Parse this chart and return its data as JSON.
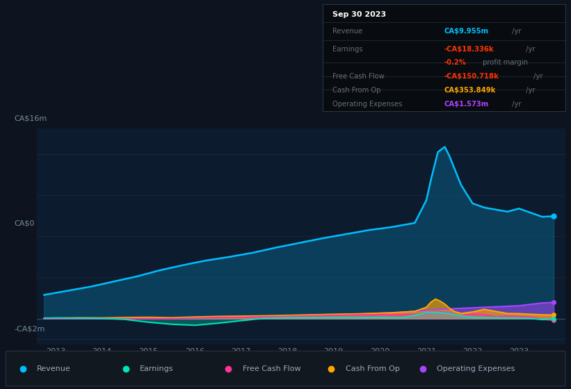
{
  "bg_color": "#0d1420",
  "chart_bg": "#0d1b2e",
  "grid_color": "#1a2a3a",
  "ylim": [
    -2500000,
    18500000
  ],
  "y_zero": 0,
  "y_top": 16000000,
  "y_bot": -2000000,
  "xlim": [
    2012.6,
    2024.0
  ],
  "xticks": [
    2013,
    2014,
    2015,
    2016,
    2017,
    2018,
    2019,
    2020,
    2021,
    2022,
    2023
  ],
  "revenue_color": "#00bfff",
  "earnings_color": "#00e5bb",
  "fcf_color": "#ff3399",
  "cashop_color": "#ffa500",
  "opex_color": "#aa44ff",
  "revenue_x": [
    2012.75,
    2013.0,
    2013.25,
    2013.75,
    2014.25,
    2014.75,
    2015.25,
    2015.75,
    2016.25,
    2016.75,
    2017.25,
    2017.75,
    2018.25,
    2018.75,
    2019.25,
    2019.75,
    2020.0,
    2020.25,
    2020.5,
    2020.75,
    2021.0,
    2021.1,
    2021.25,
    2021.4,
    2021.5,
    2021.75,
    2022.0,
    2022.25,
    2022.5,
    2022.75,
    2023.0,
    2023.25,
    2023.5,
    2023.75
  ],
  "revenue_y": [
    2300000,
    2500000,
    2700000,
    3100000,
    3600000,
    4100000,
    4700000,
    5200000,
    5650000,
    6000000,
    6400000,
    6900000,
    7350000,
    7800000,
    8200000,
    8600000,
    8750000,
    8900000,
    9100000,
    9300000,
    11500000,
    13500000,
    16200000,
    16700000,
    15800000,
    13000000,
    11200000,
    10800000,
    10600000,
    10400000,
    10700000,
    10300000,
    9900000,
    9955000
  ],
  "earnings_x": [
    2012.75,
    2013.0,
    2013.5,
    2014.0,
    2014.5,
    2015.0,
    2015.5,
    2016.0,
    2016.5,
    2017.0,
    2017.5,
    2018.0,
    2018.5,
    2019.0,
    2019.5,
    2020.0,
    2020.5,
    2021.0,
    2021.25,
    2021.5,
    2021.75,
    2022.0,
    2022.25,
    2022.5,
    2022.75,
    2023.0,
    2023.25,
    2023.5,
    2023.75
  ],
  "earnings_y": [
    50000,
    60000,
    40000,
    20000,
    -80000,
    -350000,
    -550000,
    -650000,
    -450000,
    -200000,
    30000,
    80000,
    90000,
    100000,
    90000,
    100000,
    85000,
    550000,
    600000,
    500000,
    250000,
    120000,
    80000,
    80000,
    60000,
    50000,
    20000,
    -100000,
    -18336
  ],
  "fcf_x": [
    2012.75,
    2013.0,
    2013.5,
    2014.0,
    2014.5,
    2015.0,
    2015.5,
    2016.0,
    2016.5,
    2017.0,
    2017.5,
    2018.0,
    2018.5,
    2019.0,
    2019.5,
    2020.0,
    2020.5,
    2021.0,
    2021.25,
    2021.5,
    2021.75,
    2022.0,
    2022.25,
    2022.5,
    2022.75,
    2023.0,
    2023.25,
    2023.5,
    2023.75
  ],
  "fcf_y": [
    0,
    10000,
    15000,
    15000,
    10000,
    5000,
    5000,
    60000,
    100000,
    130000,
    170000,
    220000,
    270000,
    320000,
    360000,
    400000,
    380000,
    480000,
    680000,
    580000,
    280000,
    480000,
    380000,
    180000,
    250000,
    200000,
    150000,
    -80000,
    -150718
  ],
  "cashop_x": [
    2012.75,
    2013.0,
    2013.5,
    2014.0,
    2014.5,
    2015.0,
    2015.5,
    2016.0,
    2016.5,
    2017.0,
    2017.5,
    2018.0,
    2018.5,
    2019.0,
    2019.5,
    2020.0,
    2020.25,
    2020.5,
    2020.75,
    2021.0,
    2021.1,
    2021.2,
    2021.3,
    2021.4,
    2021.5,
    2021.6,
    2021.75,
    2022.0,
    2022.25,
    2022.5,
    2022.75,
    2023.0,
    2023.25,
    2023.5,
    2023.75
  ],
  "cashop_y": [
    20000,
    50000,
    80000,
    70000,
    110000,
    130000,
    90000,
    160000,
    210000,
    240000,
    270000,
    320000,
    370000,
    420000,
    460000,
    530000,
    560000,
    640000,
    700000,
    1100000,
    1600000,
    1900000,
    1700000,
    1400000,
    1000000,
    700000,
    500000,
    650000,
    900000,
    700000,
    500000,
    480000,
    420000,
    370000,
    353849
  ],
  "opex_x": [
    2012.75,
    2013.0,
    2013.5,
    2014.0,
    2014.5,
    2015.0,
    2015.5,
    2016.0,
    2016.5,
    2017.0,
    2017.5,
    2018.0,
    2018.5,
    2019.0,
    2019.5,
    2020.0,
    2020.5,
    2021.0,
    2021.5,
    2022.0,
    2022.5,
    2023.0,
    2023.5,
    2023.75
  ],
  "opex_y": [
    0,
    0,
    0,
    0,
    0,
    0,
    0,
    50000,
    100000,
    160000,
    220000,
    280000,
    330000,
    380000,
    430000,
    530000,
    620000,
    820000,
    950000,
    1050000,
    1150000,
    1250000,
    1520000,
    1573000
  ],
  "legend": [
    {
      "label": "Revenue",
      "color": "#00bfff"
    },
    {
      "label": "Earnings",
      "color": "#00e5bb"
    },
    {
      "label": "Free Cash Flow",
      "color": "#ff3399"
    },
    {
      "label": "Cash From Op",
      "color": "#ffa500"
    },
    {
      "label": "Operating Expenses",
      "color": "#aa44ff"
    }
  ]
}
